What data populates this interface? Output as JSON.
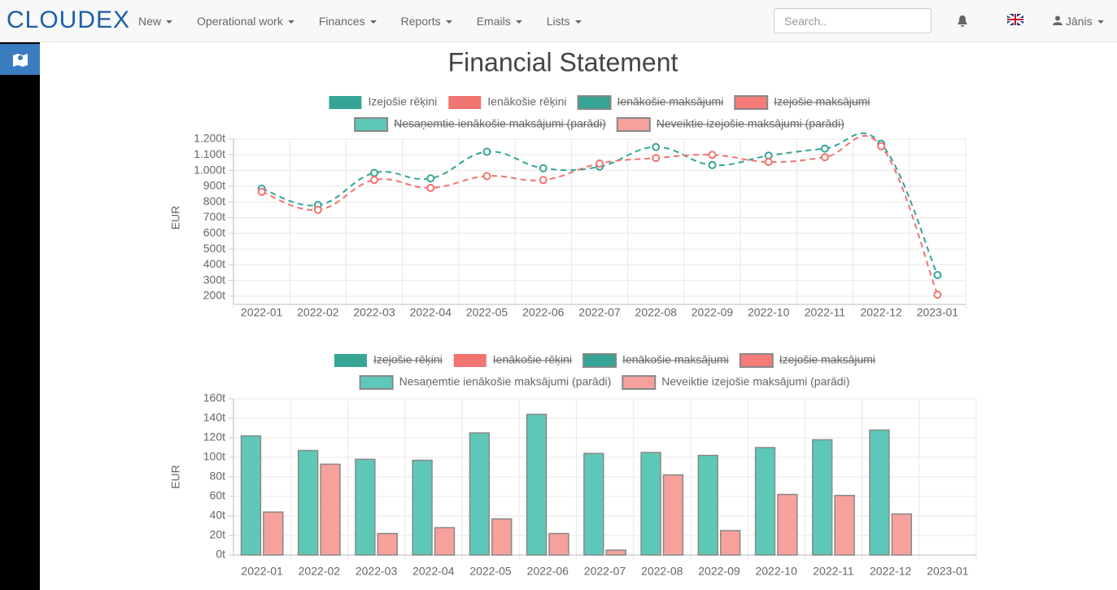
{
  "nav": {
    "logo": "CLOUDEX",
    "menu": [
      "New",
      "Operational work",
      "Finances",
      "Reports",
      "Emails",
      "Lists"
    ],
    "search_placeholder": "Search..",
    "user": "Jānis"
  },
  "page": {
    "title": "Financial Statement"
  },
  "chart_data": [
    {
      "type": "line",
      "ylabel": "EUR",
      "categories": [
        "2022-01",
        "2022-02",
        "2022-03",
        "2022-04",
        "2022-05",
        "2022-06",
        "2022-07",
        "2022-08",
        "2022-09",
        "2022-10",
        "2022-11",
        "2022-12",
        "2023-01"
      ],
      "ylim": [
        200000,
        1200000
      ],
      "yticks": [
        {
          "value": 200000,
          "label": "200t"
        },
        {
          "value": 300000,
          "label": "300t"
        },
        {
          "value": 400000,
          "label": "400t"
        },
        {
          "value": 500000,
          "label": "500t"
        },
        {
          "value": 600000,
          "label": "600t"
        },
        {
          "value": 700000,
          "label": "700t"
        },
        {
          "value": 800000,
          "label": "800t"
        },
        {
          "value": 900000,
          "label": "900t"
        },
        {
          "value": 1000000,
          "label": "1.000t"
        },
        {
          "value": 1100000,
          "label": "1.100t"
        },
        {
          "value": 1200000,
          "label": "1.200t"
        }
      ],
      "grid": true,
      "series": [
        {
          "name": "Izejošie rēķini",
          "style": "line",
          "color": "#36a595",
          "hidden": false,
          "values": [
            885000,
            780000,
            985000,
            950000,
            1120000,
            1015000,
            1025000,
            1150000,
            1035000,
            1095000,
            1140000,
            1170000,
            335000
          ]
        },
        {
          "name": "Ienākošie rēķini",
          "style": "line",
          "color": "#f07470",
          "hidden": false,
          "values": [
            865000,
            750000,
            940000,
            890000,
            965000,
            940000,
            1045000,
            1080000,
            1100000,
            1055000,
            1085000,
            1155000,
            210000
          ]
        },
        {
          "name": "Ienākošie maksājumi",
          "style": "bar",
          "color": "#36a595",
          "hidden": true
        },
        {
          "name": "Izejošie maksājumi",
          "style": "bar",
          "color": "#f77b78",
          "hidden": true
        },
        {
          "name": "Nesaņemtie ienākošie maksājumi (parādi)",
          "style": "bar",
          "color": "#5ec8b8",
          "hidden": true
        },
        {
          "name": "Neveiktie izejošie maksājumi (parādi)",
          "style": "bar",
          "color": "#f7a19c",
          "hidden": true
        }
      ]
    },
    {
      "type": "bar",
      "ylabel": "EUR",
      "categories": [
        "2022-01",
        "2022-02",
        "2022-03",
        "2022-04",
        "2022-05",
        "2022-06",
        "2022-07",
        "2022-08",
        "2022-09",
        "2022-10",
        "2022-11",
        "2022-12",
        "2023-01"
      ],
      "ylim": [
        0,
        160000
      ],
      "yticks": [
        {
          "value": 0,
          "label": "0t"
        },
        {
          "value": 20000,
          "label": "20t"
        },
        {
          "value": 40000,
          "label": "40t"
        },
        {
          "value": 60000,
          "label": "60t"
        },
        {
          "value": 80000,
          "label": "80t"
        },
        {
          "value": 100000,
          "label": "100t"
        },
        {
          "value": 120000,
          "label": "120t"
        },
        {
          "value": 140000,
          "label": "140t"
        },
        {
          "value": 160000,
          "label": "160t"
        }
      ],
      "grid": true,
      "series": [
        {
          "name": "Izejošie rēķini",
          "style": "line",
          "color": "#36a595",
          "hidden": true
        },
        {
          "name": "Ienākošie rēķini",
          "style": "line",
          "color": "#f07470",
          "hidden": true
        },
        {
          "name": "Ienākošie maksājumi",
          "style": "bar",
          "color": "#36a595",
          "hidden": true
        },
        {
          "name": "Izejošie maksājumi",
          "style": "bar",
          "color": "#f77b78",
          "hidden": true
        },
        {
          "name": "Nesaņemtie ienākošie maksājumi (parādi)",
          "style": "bar",
          "color": "#5ec8b8",
          "hidden": false,
          "values": [
            122000,
            107000,
            98000,
            97000,
            125000,
            144000,
            104000,
            105000,
            102000,
            110000,
            118000,
            128000,
            null
          ]
        },
        {
          "name": "Neveiktie izejošie maksājumi (parādi)",
          "style": "bar",
          "color": "#f7a19c",
          "hidden": false,
          "values": [
            44000,
            93000,
            22000,
            28000,
            37000,
            22000,
            5000,
            82000,
            25000,
            62000,
            61000,
            42000,
            null
          ]
        }
      ]
    }
  ]
}
